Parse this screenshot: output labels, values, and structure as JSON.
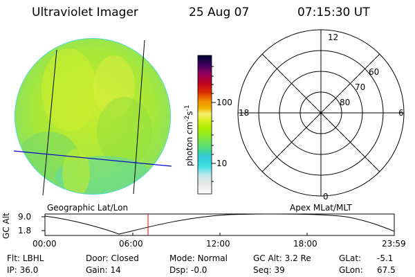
{
  "header": {
    "instrument": "Ultraviolet Imager",
    "date": "25 Aug 07",
    "time": "07:15:30 UT"
  },
  "image_panel": {
    "label": "Geographic Lat/Lon"
  },
  "colorbar": {
    "unit": "photon cm",
    "unit_exp1": "-2",
    "unit_s": "s",
    "unit_exp2": "-1",
    "ticks": [
      "100",
      "10"
    ],
    "stops": [
      "#ffffff",
      "#e8e8e8",
      "#c8e8ee",
      "#40e0e0",
      "#30c8d8",
      "#80e840",
      "#a8f000",
      "#d8f020",
      "#f8f070",
      "#f0b000",
      "#f09000",
      "#e03000",
      "#c00020",
      "#900060",
      "#400060",
      "#000030"
    ],
    "scale": "log"
  },
  "polar_panel": {
    "label": "Apex MLat/MLT",
    "mlt_labels": [
      "12",
      "18",
      "6",
      "0"
    ],
    "lat_labels": [
      "60",
      "70",
      "80"
    ]
  },
  "altitude_plot": {
    "ylabel": "GC Alt",
    "yticks": [
      "9.0",
      "1.8"
    ],
    "xticks": [
      "00:00",
      "06:00",
      "12:00",
      "18:00",
      "23:59"
    ],
    "current_time_color": "#ff0000"
  },
  "info": {
    "flt_label": "Flt:",
    "flt_value": "LBHL",
    "door_label": "Door:",
    "door_value": "Closed",
    "mode_label": "Mode:",
    "mode_value": "Normal",
    "gcalt_label": "GC Alt:",
    "gcalt_value": "3.2 Re",
    "glat_label": "GLat:",
    "glat_value": "-5.1",
    "ip_label": "IP:",
    "ip_value": "36.0",
    "gain_label": "Gain:",
    "gain_value": "14",
    "dsp_label": "Dsp:",
    "dsp_value": "-0.0",
    "seq_label": "Seq:",
    "seq_value": "39",
    "glon_label": "GLon:",
    "glon_value": "67.5"
  }
}
